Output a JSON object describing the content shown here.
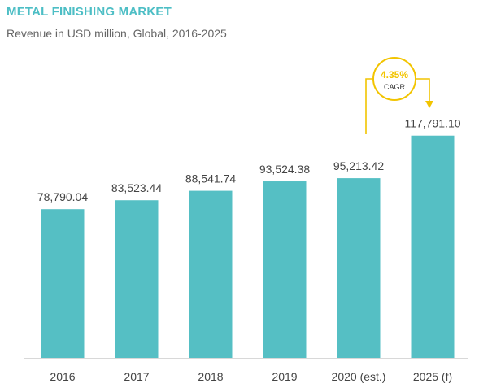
{
  "chart_data": {
    "type": "bar",
    "title": "METAL FINISHING MARKET",
    "subtitle": "Revenue in USD million, Global, 2016-2025",
    "categories": [
      "2016",
      "2017",
      "2018",
      "2019",
      "2020 (est.)",
      "2025 (f)"
    ],
    "values": [
      78790.04,
      83523.44,
      88541.74,
      93524.38,
      95213.42,
      117791.1
    ],
    "value_labels": [
      "78,790.04",
      "83,523.44",
      "88,541.74",
      "93,524.38",
      "95,213.42",
      "117,791.10"
    ],
    "ylim": [
      0,
      125000
    ],
    "grid": false,
    "bar_color": "#55bfc4",
    "annotation": {
      "value": "4.35%",
      "label": "CAGR",
      "from_category": "2020 (est.)",
      "to_category": "2025 (f)",
      "color": "#f2c400"
    }
  }
}
